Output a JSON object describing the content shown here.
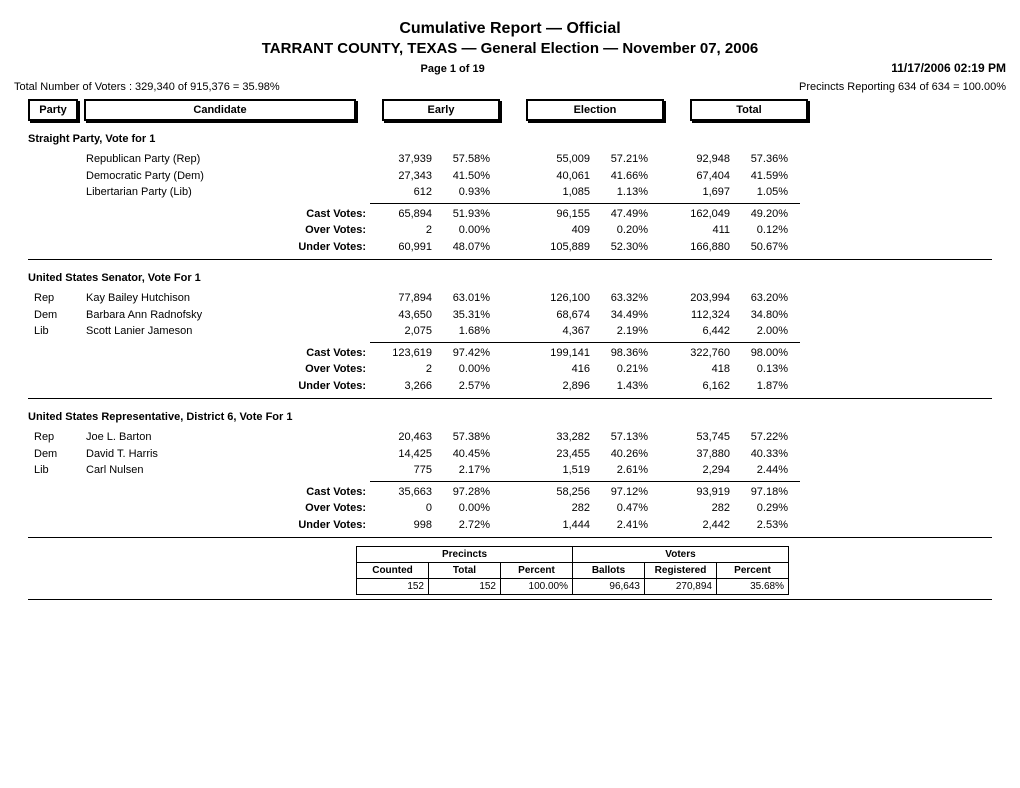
{
  "title1": "Cumulative Report   —   Official",
  "title2": "TARRANT COUNTY, TEXAS   —   General Election   —   November 07, 2006",
  "page_info": "Page 1 of 19",
  "timestamp": "11/17/2006 02:19 PM",
  "total_voters": "Total Number of Voters : 329,340 of 915,376 = 35.98%",
  "precincts_reporting": "Precincts Reporting 634 of 634 = 100.00%",
  "headers": {
    "party": "Party",
    "candidate": "Candidate",
    "early": "Early",
    "election": "Election",
    "total": "Total"
  },
  "sum_labels": {
    "cast": "Cast Votes:",
    "over": "Over Votes:",
    "under": "Under Votes:"
  },
  "contests": [
    {
      "title": "Straight Party, Vote for 1",
      "rows": [
        {
          "party": "",
          "candidate": "Republican Party (Rep)",
          "early_n": "37,939",
          "early_p": "57.58%",
          "elec_n": "55,009",
          "elec_p": "57.21%",
          "total_n": "92,948",
          "total_p": "57.36%"
        },
        {
          "party": "",
          "candidate": "Democratic Party (Dem)",
          "early_n": "27,343",
          "early_p": "41.50%",
          "elec_n": "40,061",
          "elec_p": "41.66%",
          "total_n": "67,404",
          "total_p": "41.59%"
        },
        {
          "party": "",
          "candidate": "Libertarian Party (Lib)",
          "early_n": "612",
          "early_p": "0.93%",
          "elec_n": "1,085",
          "elec_p": "1.13%",
          "total_n": "1,697",
          "total_p": "1.05%"
        }
      ],
      "summary": [
        {
          "label": "cast",
          "early_n": "65,894",
          "early_p": "51.93%",
          "elec_n": "96,155",
          "elec_p": "47.49%",
          "total_n": "162,049",
          "total_p": "49.20%"
        },
        {
          "label": "over",
          "early_n": "2",
          "early_p": "0.00%",
          "elec_n": "409",
          "elec_p": "0.20%",
          "total_n": "411",
          "total_p": "0.12%"
        },
        {
          "label": "under",
          "early_n": "60,991",
          "early_p": "48.07%",
          "elec_n": "105,889",
          "elec_p": "52.30%",
          "total_n": "166,880",
          "total_p": "50.67%"
        }
      ]
    },
    {
      "title": "United States Senator, Vote For 1",
      "rows": [
        {
          "party": "Rep",
          "candidate": "Kay Bailey Hutchison",
          "early_n": "77,894",
          "early_p": "63.01%",
          "elec_n": "126,100",
          "elec_p": "63.32%",
          "total_n": "203,994",
          "total_p": "63.20%"
        },
        {
          "party": "Dem",
          "candidate": "Barbara Ann Radnofsky",
          "early_n": "43,650",
          "early_p": "35.31%",
          "elec_n": "68,674",
          "elec_p": "34.49%",
          "total_n": "112,324",
          "total_p": "34.80%"
        },
        {
          "party": "Lib",
          "candidate": "Scott Lanier Jameson",
          "early_n": "2,075",
          "early_p": "1.68%",
          "elec_n": "4,367",
          "elec_p": "2.19%",
          "total_n": "6,442",
          "total_p": "2.00%"
        }
      ],
      "summary": [
        {
          "label": "cast",
          "early_n": "123,619",
          "early_p": "97.42%",
          "elec_n": "199,141",
          "elec_p": "98.36%",
          "total_n": "322,760",
          "total_p": "98.00%"
        },
        {
          "label": "over",
          "early_n": "2",
          "early_p": "0.00%",
          "elec_n": "416",
          "elec_p": "0.21%",
          "total_n": "418",
          "total_p": "0.13%"
        },
        {
          "label": "under",
          "early_n": "3,266",
          "early_p": "2.57%",
          "elec_n": "2,896",
          "elec_p": "1.43%",
          "total_n": "6,162",
          "total_p": "1.87%"
        }
      ]
    },
    {
      "title": "United States Representative, District 6, Vote For 1",
      "rows": [
        {
          "party": "Rep",
          "candidate": "Joe L. Barton",
          "early_n": "20,463",
          "early_p": "57.38%",
          "elec_n": "33,282",
          "elec_p": "57.13%",
          "total_n": "53,745",
          "total_p": "57.22%"
        },
        {
          "party": "Dem",
          "candidate": "David T. Harris",
          "early_n": "14,425",
          "early_p": "40.45%",
          "elec_n": "23,455",
          "elec_p": "40.26%",
          "total_n": "37,880",
          "total_p": "40.33%"
        },
        {
          "party": "Lib",
          "candidate": "Carl Nulsen",
          "early_n": "775",
          "early_p": "2.17%",
          "elec_n": "1,519",
          "elec_p": "2.61%",
          "total_n": "2,294",
          "total_p": "2.44%"
        }
      ],
      "summary": [
        {
          "label": "cast",
          "early_n": "35,663",
          "early_p": "97.28%",
          "elec_n": "58,256",
          "elec_p": "97.12%",
          "total_n": "93,919",
          "total_p": "97.18%"
        },
        {
          "label": "over",
          "early_n": "0",
          "early_p": "0.00%",
          "elec_n": "282",
          "elec_p": "0.47%",
          "total_n": "282",
          "total_p": "0.29%"
        },
        {
          "label": "under",
          "early_n": "998",
          "early_p": "2.72%",
          "elec_n": "1,444",
          "elec_p": "2.41%",
          "total_n": "2,442",
          "total_p": "2.53%"
        }
      ]
    }
  ],
  "precincts_table": {
    "span1": "Precincts",
    "span2": "Voters",
    "cols": [
      "Counted",
      "Total",
      "Percent",
      "Ballots",
      "Registered",
      "Percent"
    ],
    "vals": [
      "152",
      "152",
      "100.00%",
      "96,643",
      "270,894",
      "35.68%"
    ]
  }
}
